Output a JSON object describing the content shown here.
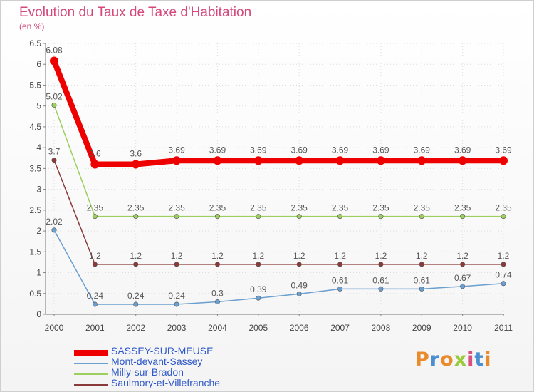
{
  "header": {
    "title": "Evolution du Taux de Taxe d'Habitation",
    "subtitle": "(en %)"
  },
  "logo": {
    "text": "Proxiti",
    "colors": [
      "#e98b2a",
      "#4b8fd1",
      "#e98b2a",
      "#9bcb3c",
      "#d94f7e",
      "#4b8fd1",
      "#e98b2a"
    ]
  },
  "chart_data": {
    "type": "line",
    "title": "Evolution du Taux de Taxe d'Habitation",
    "ylabel": "(en %)",
    "xlabel": "",
    "x": [
      "2000",
      "2001",
      "2002",
      "2003",
      "2004",
      "2005",
      "2006",
      "2007",
      "2008",
      "2009",
      "2010",
      "2011"
    ],
    "ylim": [
      0,
      6.5
    ],
    "yticks": [
      "0",
      "0.5",
      "1",
      "1.5",
      "2",
      "2.5",
      "3",
      "3.5",
      "4",
      "4.5",
      "5",
      "5.5",
      "6",
      "6.5"
    ],
    "grid": true,
    "legend": "bottom-left",
    "series": [
      {
        "name": "SASSEY-SUR-MEUSE",
        "color": "#ee0000",
        "values": [
          6.08,
          3.6,
          3.6,
          3.69,
          3.69,
          3.69,
          3.69,
          3.69,
          3.69,
          3.69,
          3.69,
          3.69
        ],
        "labels": [
          "6.08",
          "3.6",
          "3.6",
          "3.69",
          "3.69",
          "3.69",
          "3.69",
          "3.69",
          "3.69",
          "3.69",
          "3.69",
          "3.69"
        ]
      },
      {
        "name": "Mont-devant-Sassey",
        "color": "#6a9fd0",
        "values": [
          2.02,
          0.24,
          0.24,
          0.24,
          0.3,
          0.39,
          0.49,
          0.61,
          0.61,
          0.61,
          0.67,
          0.74
        ],
        "labels": [
          "2.02",
          "0.24",
          "0.24",
          "0.24",
          "0.3",
          "0.39",
          "0.49",
          "0.61",
          "0.61",
          "0.61",
          "0.67",
          "0.74"
        ]
      },
      {
        "name": "Milly-sur-Bradon",
        "color": "#9ccf5e",
        "values": [
          5.02,
          2.35,
          2.35,
          2.35,
          2.35,
          2.35,
          2.35,
          2.35,
          2.35,
          2.35,
          2.35,
          2.35
        ],
        "labels": [
          "5.02",
          "2.35",
          "2.35",
          "2.35",
          "2.35",
          "2.35",
          "2.35",
          "2.35",
          "2.35",
          "2.35",
          "2.35",
          "2.35"
        ]
      },
      {
        "name": "Saulmory-et-Villefranche",
        "color": "#8b3a3a",
        "values": [
          3.7,
          1.2,
          1.2,
          1.2,
          1.2,
          1.2,
          1.2,
          1.2,
          1.2,
          1.2,
          1.2,
          1.2
        ],
        "labels": [
          "3.7",
          "1.2",
          "1.2",
          "1.2",
          "1.2",
          "1.2",
          "1.2",
          "1.2",
          "1.2",
          "1.2",
          "1.2",
          "1.2"
        ]
      }
    ]
  }
}
